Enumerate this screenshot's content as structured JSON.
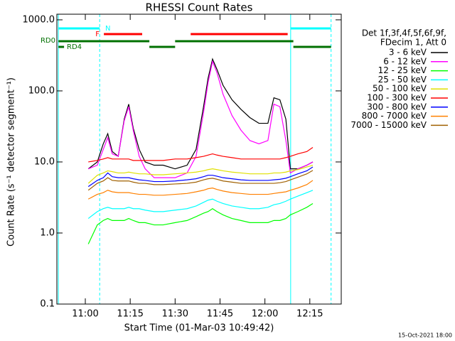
{
  "chart_data": {
    "type": "line",
    "title": "RHESSI Count Rates",
    "xlabel": "Start Time (01-Mar-03 10:49:42)",
    "ylabel": "Count Rate (s⁻¹ detector segment⁻¹)",
    "timestamp": "15-Oct-2021 18:00",
    "legend_header": [
      "Det 1f,3f,4f,5f,6f,9f,",
      "FDecim 1, Att 0"
    ],
    "log_scale": true,
    "xlim": [
      650.5,
      745.5
    ],
    "ylim": [
      0.1,
      1200
    ],
    "xticks": [
      {
        "value": 660,
        "label": "11:00"
      },
      {
        "value": 675,
        "label": "11:15"
      },
      {
        "value": 690,
        "label": "11:30"
      },
      {
        "value": 705,
        "label": "11:45"
      },
      {
        "value": 720,
        "label": "12:00"
      },
      {
        "value": 735,
        "label": "12:15"
      }
    ],
    "yticks": [
      0.1,
      {
        "value": 1,
        "label": "1.0"
      },
      {
        "value": 10,
        "label": "10.0"
      },
      {
        "value": 100,
        "label": "100.0"
      },
      {
        "value": 1000,
        "label": "1000.0"
      }
    ],
    "x": [
      661,
      664,
      666,
      667.5,
      669,
      671,
      673,
      674.5,
      676,
      678,
      680,
      683,
      686,
      690,
      694,
      697,
      699.5,
      701,
      702.5,
      704,
      706,
      709,
      712,
      715,
      718,
      721,
      723,
      725,
      727,
      728.5,
      731,
      734,
      736
    ],
    "series": [
      {
        "name": "7000 - 15000 keV",
        "color": "#a06000",
        "values": [
          4,
          5,
          5.4,
          6,
          5.5,
          5.4,
          5.4,
          5.4,
          5.2,
          5,
          5,
          4.8,
          4.8,
          4.9,
          5,
          5.2,
          5.6,
          5.8,
          5.9,
          5.7,
          5.4,
          5.2,
          5,
          5,
          5,
          5,
          5,
          5.1,
          5.3,
          5.6,
          6.1,
          6.8,
          7.6
        ]
      },
      {
        "name": "3 - 6 keV",
        "color": "#000000",
        "values": [
          8,
          10,
          18,
          25,
          14,
          12,
          40,
          65,
          30,
          15,
          10,
          9,
          9,
          8,
          9,
          15,
          60,
          150,
          280,
          200,
          120,
          75,
          55,
          42,
          35,
          35,
          80,
          75,
          40,
          8,
          8,
          9,
          10
        ]
      },
      {
        "name": "6 - 12 keV",
        "color": "#ff00ff",
        "values": [
          8,
          9,
          15,
          22,
          13,
          12,
          38,
          60,
          28,
          12,
          8,
          6,
          6,
          6,
          7,
          12,
          50,
          130,
          260,
          180,
          90,
          45,
          28,
          20,
          18,
          20,
          65,
          60,
          20,
          7,
          8,
          9,
          10
        ]
      },
      {
        "name": "12 - 25 keV",
        "color": "#00ff00",
        "values": [
          0.7,
          1.3,
          1.5,
          1.6,
          1.5,
          1.5,
          1.5,
          1.6,
          1.5,
          1.4,
          1.4,
          1.3,
          1.3,
          1.4,
          1.5,
          1.7,
          1.9,
          2.0,
          2.2,
          2.0,
          1.8,
          1.6,
          1.5,
          1.4,
          1.4,
          1.4,
          1.5,
          1.5,
          1.6,
          1.8,
          2.0,
          2.3,
          2.6
        ]
      },
      {
        "name": "25 - 50 keV",
        "color": "#00ffff",
        "values": [
          1.6,
          2.0,
          2.2,
          2.3,
          2.2,
          2.2,
          2.2,
          2.3,
          2.2,
          2.2,
          2.1,
          2.0,
          2.0,
          2.1,
          2.2,
          2.4,
          2.7,
          2.9,
          3.0,
          2.8,
          2.6,
          2.4,
          2.3,
          2.2,
          2.2,
          2.3,
          2.5,
          2.6,
          2.8,
          3.0,
          3.3,
          3.7,
          4.0
        ]
      },
      {
        "name": "50 - 100 keV",
        "color": "#e0e000",
        "values": [
          5,
          6.5,
          7,
          7.5,
          7.3,
          7,
          7,
          7.2,
          7,
          6.8,
          6.8,
          6.6,
          6.6,
          6.8,
          7,
          7.2,
          7.5,
          7.8,
          8,
          7.8,
          7.5,
          7.2,
          7,
          6.8,
          6.8,
          6.8,
          7,
          7,
          7.2,
          7.5,
          7.8,
          8.5,
          9
        ]
      },
      {
        "name": "100 - 300 keV",
        "color": "#ff0000",
        "values": [
          10,
          10.5,
          11,
          11.5,
          11,
          11,
          11,
          11,
          10.5,
          10.5,
          10.5,
          10.5,
          10.5,
          11,
          11,
          11.5,
          12,
          12.5,
          13,
          12.5,
          12,
          11.5,
          11,
          11,
          11,
          11,
          11,
          11,
          11.5,
          12,
          13,
          14,
          16
        ]
      },
      {
        "name": "300 - 800 keV",
        "color": "#0000ff",
        "values": [
          4.5,
          5.5,
          6,
          7,
          6.2,
          6,
          6,
          6,
          5.8,
          5.6,
          5.5,
          5.3,
          5.3,
          5.4,
          5.6,
          5.8,
          6.2,
          6.5,
          6.5,
          6.3,
          6,
          5.8,
          5.6,
          5.5,
          5.5,
          5.5,
          5.6,
          5.7,
          5.9,
          6.2,
          6.8,
          7.5,
          8.5
        ]
      },
      {
        "name": "800 - 7000 keV",
        "color": "#ff8000",
        "values": [
          3,
          3.5,
          3.7,
          4,
          3.8,
          3.7,
          3.7,
          3.7,
          3.6,
          3.5,
          3.5,
          3.4,
          3.4,
          3.5,
          3.6,
          3.8,
          4,
          4.2,
          4.3,
          4.1,
          3.9,
          3.7,
          3.6,
          3.5,
          3.5,
          3.5,
          3.6,
          3.7,
          3.8,
          4,
          4.3,
          4.8,
          5.5
        ]
      }
    ],
    "legend_order": [
      1,
      2,
      3,
      4,
      5,
      6,
      7,
      8,
      0
    ],
    "flags": [
      {
        "label": "N",
        "color": "#00ffff",
        "intervals": [
          [
            651,
            664.8
          ],
          [
            728.6,
            742.1
          ]
        ]
      },
      {
        "label": "F",
        "color": "#ff0000",
        "intervals": [
          [
            666.2,
            679
          ],
          [
            695.2,
            727.6
          ]
        ]
      },
      {
        "label": "RD0",
        "color": "#007000",
        "intervals": [
          [
            651,
            681.4
          ],
          [
            690,
            729.5
          ]
        ]
      },
      {
        "label": "RD4",
        "color": "#007000",
        "intervals": [
          [
            651,
            652.9
          ],
          [
            681.4,
            690
          ],
          [
            729.5,
            742.1
          ]
        ]
      }
    ]
  }
}
